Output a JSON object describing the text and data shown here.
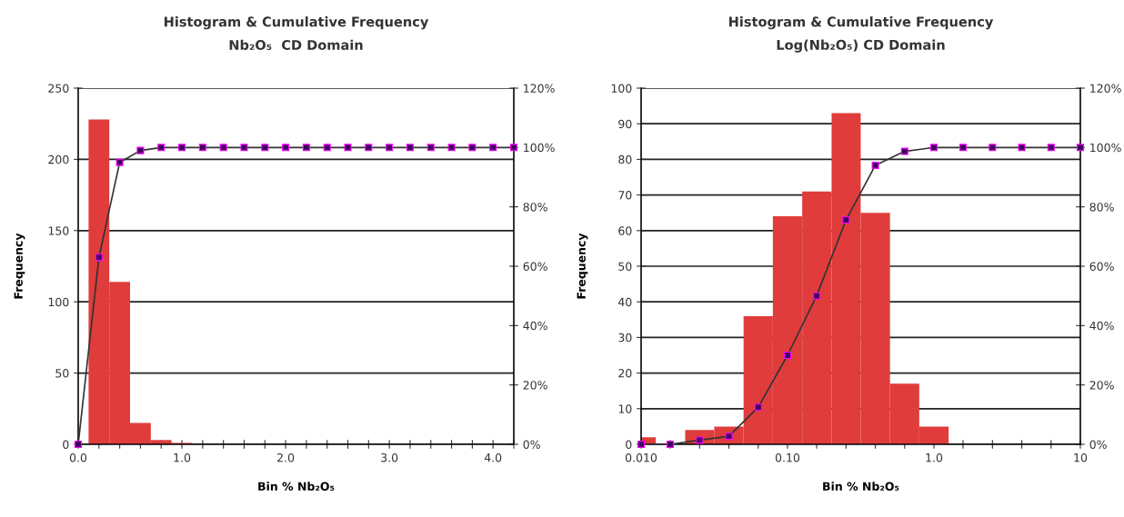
{
  "chart_data": [
    {
      "type": "histogram",
      "title": "Histogram & Cumulative Frequency",
      "subtitle": "Nb₂O₅  CD Domain",
      "xlabel": "Bin % Nb₂O₅",
      "ylabel": "Frequency",
      "bins": [
        0.1,
        0.3,
        0.5,
        0.7,
        0.9,
        1.1
      ],
      "values": [
        228,
        114,
        15,
        3,
        1
      ],
      "color": "#e03c3c",
      "series": [
        {
          "type": "line",
          "axis": "y2",
          "color": "#400060",
          "marker": "square",
          "line_style": "solid",
          "x": [
            0,
            0.2,
            0.4,
            0.6,
            0.8,
            1.0,
            1.2,
            1.4,
            1.6,
            1.8,
            2.0,
            2.2,
            2.4,
            2.6,
            2.8,
            3.0,
            3.2,
            3.4,
            3.6,
            3.8,
            4.0,
            4.2
          ],
          "values": [
            0,
            63,
            95,
            99,
            100,
            100,
            100,
            100,
            100,
            100,
            100,
            100,
            100,
            100,
            100,
            100,
            100,
            100,
            100,
            100,
            100,
            100
          ]
        }
      ],
      "xlim": [
        0,
        4.2
      ],
      "xticks": [
        {
          "value": 0,
          "label": "0.0"
        },
        {
          "value": 0.2,
          "label": null
        },
        {
          "value": 0.4,
          "label": null
        },
        {
          "value": 0.6,
          "label": null
        },
        {
          "value": 0.8,
          "label": null
        },
        {
          "value": 1.0,
          "label": "1.0"
        },
        {
          "value": 1.2,
          "label": null
        },
        {
          "value": 1.4,
          "label": null
        },
        {
          "value": 1.6,
          "label": null
        },
        {
          "value": 1.8,
          "label": null
        },
        {
          "value": 2.0,
          "label": "2.0"
        },
        {
          "value": 2.2,
          "label": null
        },
        {
          "value": 2.4,
          "label": null
        },
        {
          "value": 2.6,
          "label": null
        },
        {
          "value": 2.8,
          "label": null
        },
        {
          "value": 3.0,
          "label": "3.0"
        },
        {
          "value": 3.2,
          "label": null
        },
        {
          "value": 3.4,
          "label": null
        },
        {
          "value": 3.6,
          "label": null
        },
        {
          "value": 3.8,
          "label": null
        },
        {
          "value": 4.0,
          "label": "4.0"
        },
        {
          "value": 4.2,
          "label": null
        }
      ],
      "ylim": [
        0,
        250
      ],
      "yticks": [
        0,
        50,
        100,
        150,
        200,
        250
      ],
      "y2lim": [
        0,
        120
      ],
      "y2ticks": [
        {
          "value": 0,
          "label": "0%"
        },
        {
          "value": 20,
          "label": "20%"
        },
        {
          "value": 40,
          "label": "40%"
        },
        {
          "value": 60,
          "label": "60%"
        },
        {
          "value": 80,
          "label": "80%"
        },
        {
          "value": 100,
          "label": "100%"
        },
        {
          "value": 120,
          "label": "120%"
        }
      ],
      "grid": "y"
    },
    {
      "type": "histogram",
      "title": "Histogram & Cumulative Frequency",
      "subtitle": "Log(Nb₂O₅) CD Domain",
      "xlabel": "Bin % Nb₂O₅",
      "ylabel": "Frequency",
      "bins": [
        0.00794,
        0.0126,
        0.02,
        0.0316,
        0.0501,
        0.0794,
        0.126,
        0.2,
        0.316,
        0.501,
        0.794,
        1.26
      ],
      "values": [
        2,
        0,
        4,
        5,
        36,
        64,
        71,
        93,
        65,
        17,
        5
      ],
      "color": "#e03c3c",
      "series": [
        {
          "type": "line",
          "axis": "y2",
          "color": "#400060",
          "marker": "square",
          "line_style": "solid",
          "x": [
            0.01,
            0.0158,
            0.0251,
            0.0398,
            0.0631,
            0.1,
            0.158,
            0.251,
            0.398,
            0.631,
            1.0,
            1.58,
            2.51,
            3.98,
            6.31,
            10
          ],
          "values": [
            0,
            0,
            1.4,
            2.7,
            12.5,
            30,
            50,
            75.6,
            94,
            98.7,
            100,
            100,
            100,
            100,
            100,
            100
          ]
        }
      ],
      "log": "x",
      "xlim": [
        0.01,
        10
      ],
      "xticks": [
        {
          "value": 0.01,
          "label": "0.010"
        },
        {
          "value": 0.0158,
          "label": null
        },
        {
          "value": 0.0251,
          "label": null
        },
        {
          "value": 0.0398,
          "label": null
        },
        {
          "value": 0.0631,
          "label": null
        },
        {
          "value": 0.1,
          "label": "0.10"
        },
        {
          "value": 0.158,
          "label": null
        },
        {
          "value": 0.251,
          "label": null
        },
        {
          "value": 0.398,
          "label": null
        },
        {
          "value": 0.631,
          "label": null
        },
        {
          "value": 1,
          "label": "1.0"
        },
        {
          "value": 1.58,
          "label": null
        },
        {
          "value": 2.51,
          "label": null
        },
        {
          "value": 3.98,
          "label": null
        },
        {
          "value": 6.31,
          "label": null
        },
        {
          "value": 10,
          "label": "10"
        }
      ],
      "ylim": [
        0,
        100
      ],
      "yticks": [
        0,
        10,
        20,
        30,
        40,
        50,
        60,
        70,
        80,
        90,
        100
      ],
      "y2lim": [
        0,
        120
      ],
      "y2ticks": [
        {
          "value": 0,
          "label": "0%"
        },
        {
          "value": 20,
          "label": "20%"
        },
        {
          "value": 40,
          "label": "40%"
        },
        {
          "value": 60,
          "label": "60%"
        },
        {
          "value": 80,
          "label": "80%"
        },
        {
          "value": 100,
          "label": "100%"
        },
        {
          "value": 120,
          "label": "120%"
        }
      ],
      "grid": "y"
    }
  ]
}
